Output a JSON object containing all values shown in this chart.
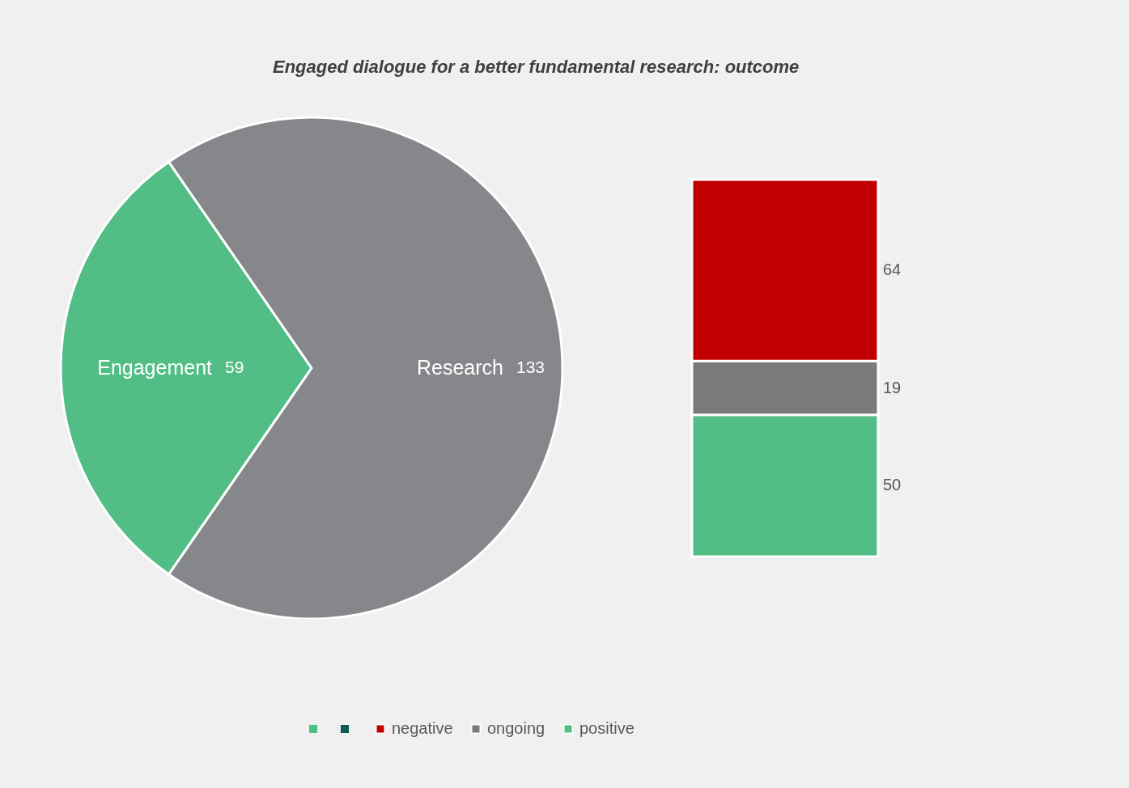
{
  "chart_data": [
    {
      "type": "pie",
      "title": "Engaged dialogue for a better fundamental research: outcome",
      "categories": [
        "Engagement",
        "Research"
      ],
      "values": [
        59,
        133
      ],
      "colors": [
        "#52be86",
        "#86878b"
      ],
      "data_labels": true
    },
    {
      "type": "bar",
      "stacked": true,
      "categories": [
        null
      ],
      "series": [
        {
          "name": "positive",
          "color": "#52be86",
          "values": [
            50
          ]
        },
        {
          "name": "ongoing",
          "color": "#7a7a7a",
          "values": [
            19
          ]
        },
        {
          "name": "negative",
          "color": "#c00000",
          "values": [
            64
          ]
        }
      ],
      "data_labels": true,
      "legend": "bottom"
    }
  ]
}
